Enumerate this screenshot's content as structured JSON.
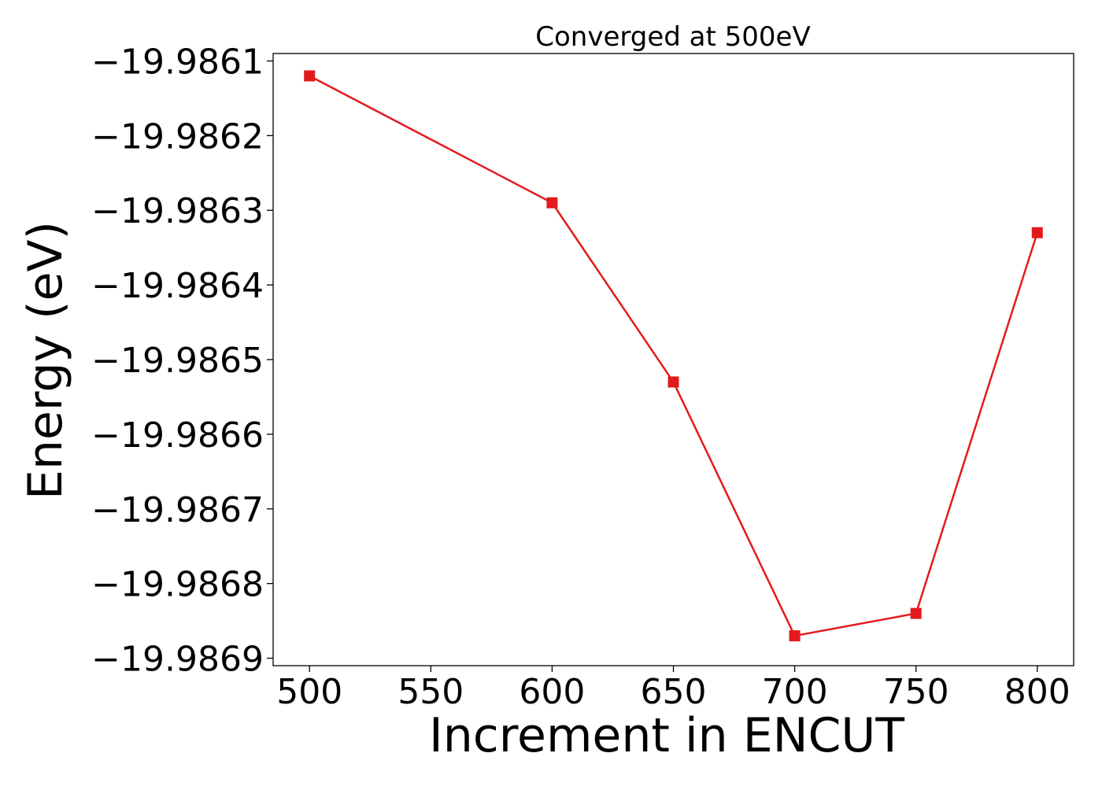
{
  "chart_data": {
    "type": "line",
    "title": "Converged at 500eV",
    "xlabel": "Increment in ENCUT",
    "ylabel": "Energy (eV)",
    "x": [
      500,
      600,
      650,
      700,
      750,
      800
    ],
    "series": [
      {
        "values": [
          -19.98612,
          -19.98629,
          -19.98653,
          -19.98687,
          -19.98684,
          -19.98633
        ],
        "color": "#e31a1c",
        "marker": "square"
      }
    ],
    "xlim": [
      485,
      815
    ],
    "ylim": [
      -19.98691,
      -19.98609
    ],
    "xticks": [
      500,
      550,
      600,
      650,
      700,
      750,
      800
    ],
    "xtick_labels": [
      "500",
      "550",
      "600",
      "650",
      "700",
      "750",
      "800"
    ],
    "yticks": [
      -19.9861,
      -19.9862,
      -19.9863,
      -19.9864,
      -19.9865,
      -19.9866,
      -19.9867,
      -19.9868,
      -19.9869
    ],
    "ytick_labels": [
      "−19.9861",
      "−19.9862",
      "−19.9863",
      "−19.9864",
      "−19.9865",
      "−19.9866",
      "−19.9867",
      "−19.9868",
      "−19.9869"
    ],
    "grid": false,
    "legend": "none"
  }
}
